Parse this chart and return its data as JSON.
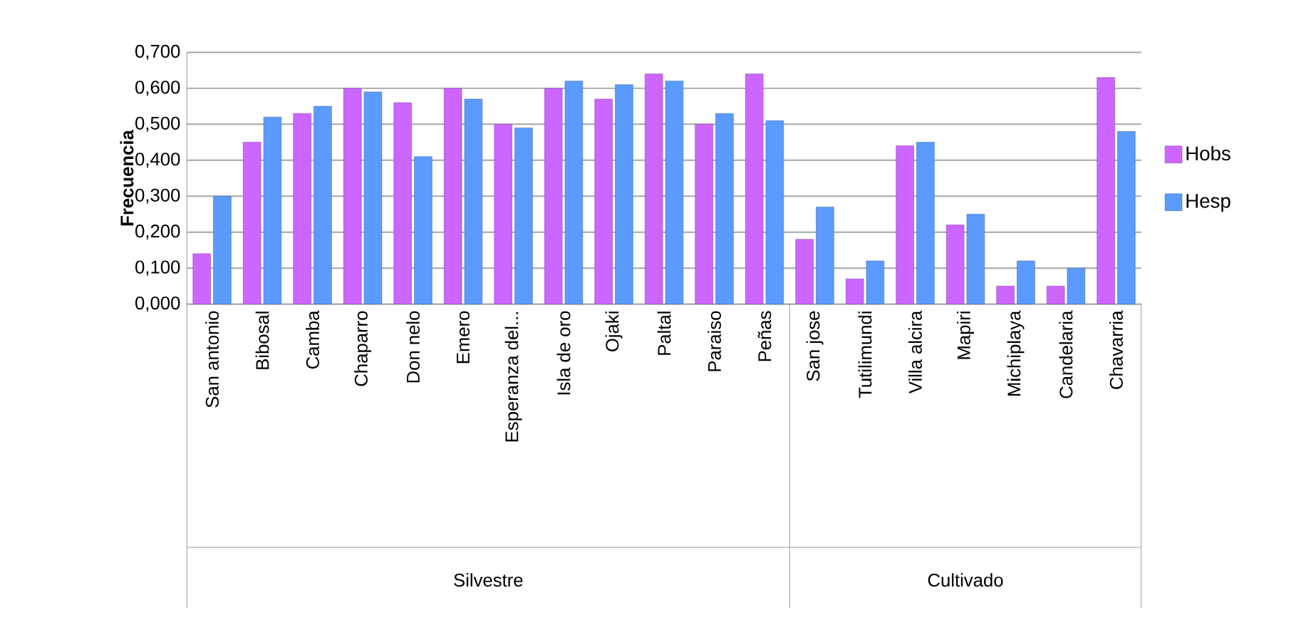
{
  "chart_data": {
    "type": "bar",
    "ylabel": "Frecuencia",
    "categories": [
      "San antonio",
      "Bibosal",
      "Camba",
      "Chaparro",
      "Don nelo",
      "Emero",
      "Esperanza del...",
      "Isla de oro",
      "Ojaki",
      "Paltal",
      "Paraiso",
      "Peñas",
      "San jose",
      "Tutilimundi",
      "Villa alcira",
      "Mapiri",
      "Michiplaya",
      "Candelaria",
      "Chavarria"
    ],
    "series": [
      {
        "name": "Hobs",
        "color": "#cc66ff",
        "values": [
          0.14,
          0.45,
          0.53,
          0.6,
          0.56,
          0.6,
          0.5,
          0.6,
          0.57,
          0.64,
          0.5,
          0.64,
          0.18,
          0.07,
          0.44,
          0.22,
          0.05,
          0.05,
          0.63
        ]
      },
      {
        "name": "Hesp",
        "color": "#5b9bff",
        "values": [
          0.3,
          0.52,
          0.55,
          0.59,
          0.41,
          0.57,
          0.49,
          0.62,
          0.61,
          0.62,
          0.53,
          0.51,
          0.27,
          0.12,
          0.45,
          0.25,
          0.12,
          0.1,
          0.48
        ]
      }
    ],
    "ylim": [
      0,
      0.7
    ],
    "yticks": [
      {
        "value": 0,
        "label": "0,000"
      },
      {
        "value": 0.1,
        "label": "0,100"
      },
      {
        "value": 0.2,
        "label": "0,200"
      },
      {
        "value": 0.3,
        "label": "0,300"
      },
      {
        "value": 0.4,
        "label": "0,400"
      },
      {
        "value": 0.5,
        "label": "0,500"
      },
      {
        "value": 0.6,
        "label": "0,600"
      },
      {
        "value": 0.7,
        "label": "0,700"
      }
    ],
    "annotations": [
      "Silvestre",
      "Cultivado"
    ],
    "grid": "y",
    "legend": "right"
  }
}
